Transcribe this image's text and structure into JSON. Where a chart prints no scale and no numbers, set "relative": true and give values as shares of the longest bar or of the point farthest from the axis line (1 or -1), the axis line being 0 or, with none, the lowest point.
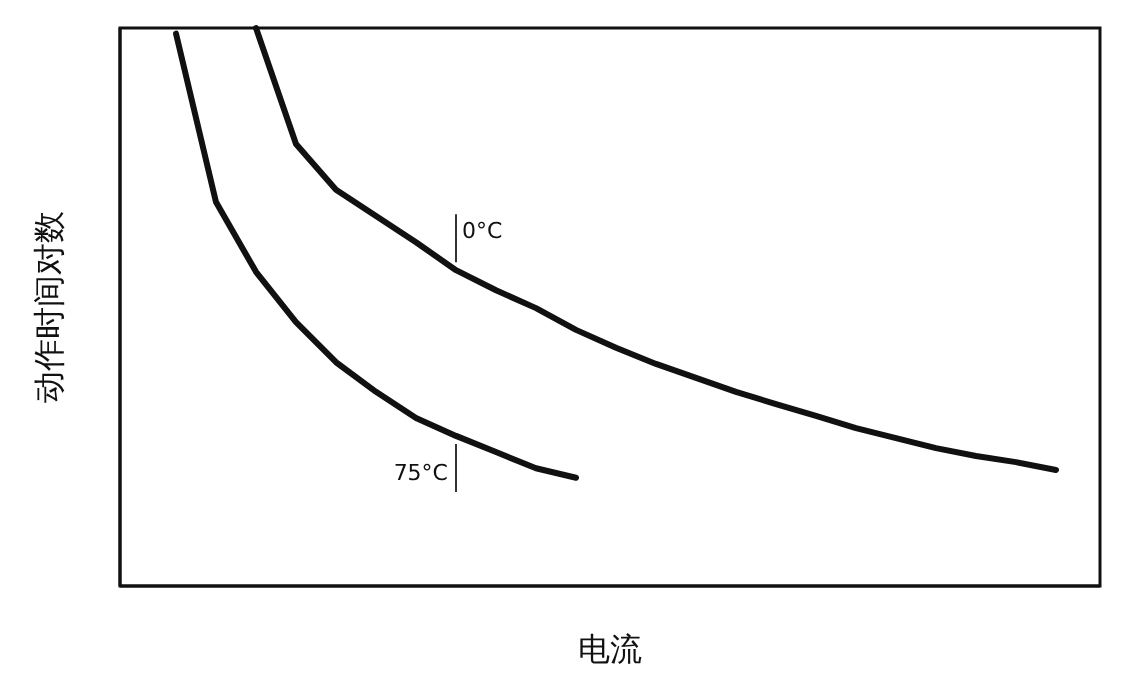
{
  "chart_data": {
    "type": "line",
    "relative": true,
    "xlabel": "电流",
    "ylabel": "动作时间对数",
    "grid": false,
    "legend": false,
    "marker": "none",
    "line_style": "solid",
    "categories": [
      null,
      null,
      null,
      null,
      null,
      null,
      null,
      null,
      null,
      null,
      null,
      null,
      null,
      null,
      null,
      null,
      null,
      null,
      null,
      null,
      null,
      null,
      null
    ],
    "series": [
      {
        "name": "0°C",
        "color": "#111111",
        "values": [
          null,
          null,
          1,
          0.792,
          0.71,
          0.663,
          0.616,
          0.566,
          0.53,
          0.498,
          0.459,
          0.427,
          0.398,
          0.373,
          0.348,
          0.326,
          0.305,
          0.283,
          0.265,
          0.247,
          0.233,
          0.222,
          0.208
        ]
      },
      {
        "name": "75°C",
        "color": "#111111",
        "values": [
          0.99,
          0.688,
          0.563,
          0.473,
          0.401,
          0.348,
          0.301,
          0.269,
          0.24,
          0.211,
          0.194,
          null,
          null,
          null,
          null,
          null,
          null,
          null,
          null,
          null,
          null,
          null,
          null
        ]
      }
    ]
  }
}
